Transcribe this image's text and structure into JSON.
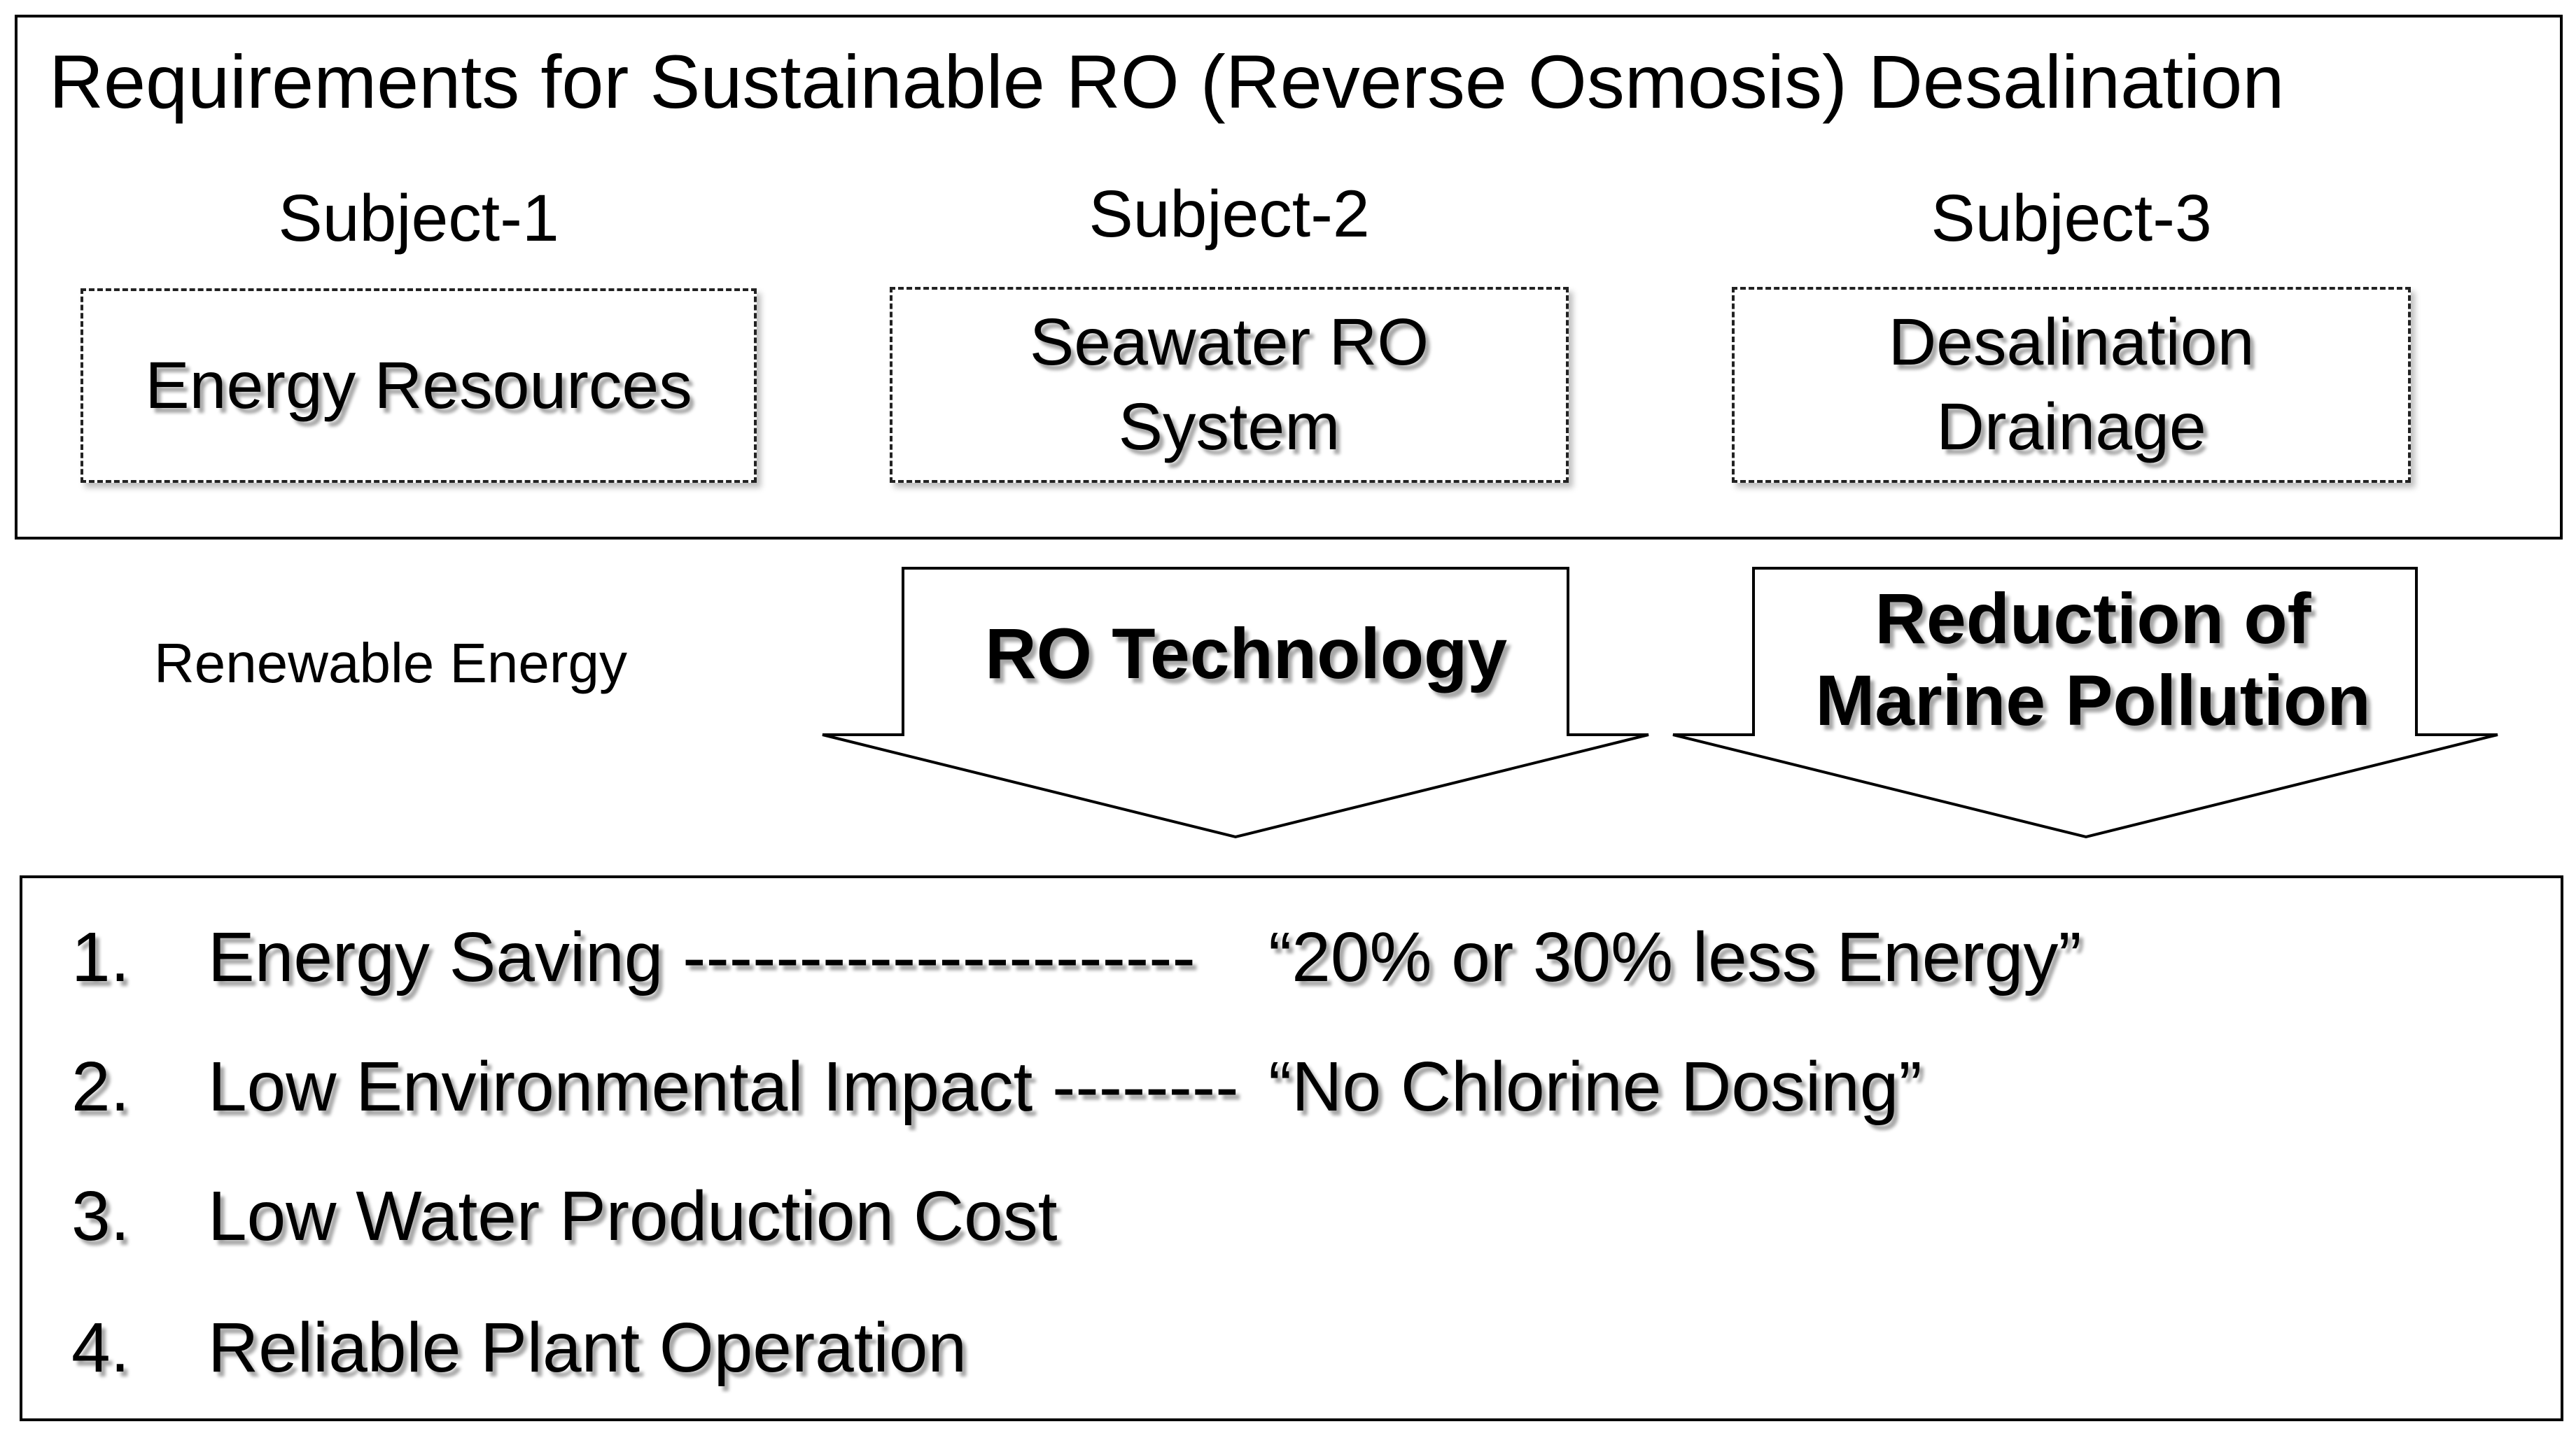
{
  "title": "Requirements for Sustainable RO (Reverse Osmosis) Desalination",
  "subjects": [
    {
      "label": "Subject-1",
      "box_text": "Energy Resources"
    },
    {
      "label": "Subject-2",
      "box_text": "Seawater RO\nSystem"
    },
    {
      "label": "Subject-3",
      "box_text": "Desalination\nDrainage"
    }
  ],
  "side_note": "Renewable  Energy",
  "arrows": [
    {
      "text": "RO Technology"
    },
    {
      "text": "Reduction of\nMarine Pollution"
    }
  ],
  "requirements": [
    {
      "num": "1.",
      "text": "Energy Saving ----------------------",
      "note": "“20% or 30% less Energy”"
    },
    {
      "num": "2.",
      "text": "Low Environmental Impact --------",
      "note": "“No Chlorine Dosing”"
    },
    {
      "num": "3.",
      "text": "Low Water Production Cost",
      "note": ""
    },
    {
      "num": "4.",
      "text": "Reliable Plant Operation",
      "note": ""
    }
  ]
}
